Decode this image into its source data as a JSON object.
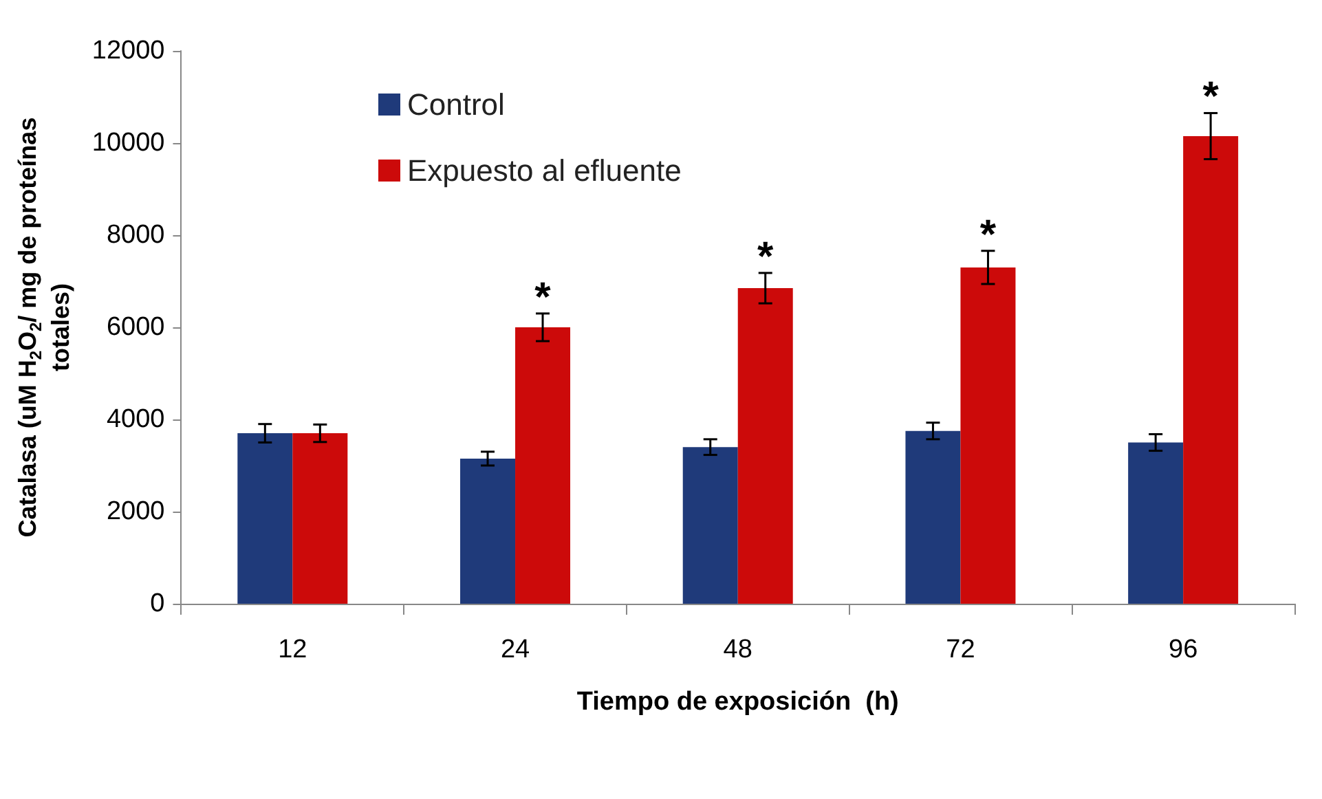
{
  "chart_data": {
    "type": "bar",
    "xlabel": "Tiempo de exposición  (h)",
    "ylabel": "Catalasa (uM H$_{2}$O$_{2}$/ mg de proteínas totales)",
    "categories": [
      "12",
      "24",
      "48",
      "72",
      "96"
    ],
    "series": [
      {
        "name": "Control",
        "color": "#1f3a7a",
        "values": [
          3700,
          3150,
          3400,
          3750,
          3500
        ],
        "errors": [
          200,
          150,
          170,
          180,
          180
        ]
      },
      {
        "name": "Expuesto al efluente",
        "color": "#cc0a0a",
        "values": [
          3700,
          6000,
          6850,
          7300,
          10150
        ],
        "errors": [
          190,
          300,
          330,
          360,
          500
        ]
      }
    ],
    "annotations": [
      {
        "text": "*",
        "x": "24",
        "y": 6000
      },
      {
        "text": "*",
        "x": "48",
        "y": 6850
      },
      {
        "text": "*",
        "x": "72",
        "y": 7300
      },
      {
        "text": "*",
        "x": "96",
        "y": 10150
      }
    ],
    "ylim": [
      0,
      12000
    ],
    "yticks": [
      0,
      2000,
      4000,
      6000,
      8000,
      10000,
      12000
    ],
    "grid": false,
    "legend": "top left"
  }
}
